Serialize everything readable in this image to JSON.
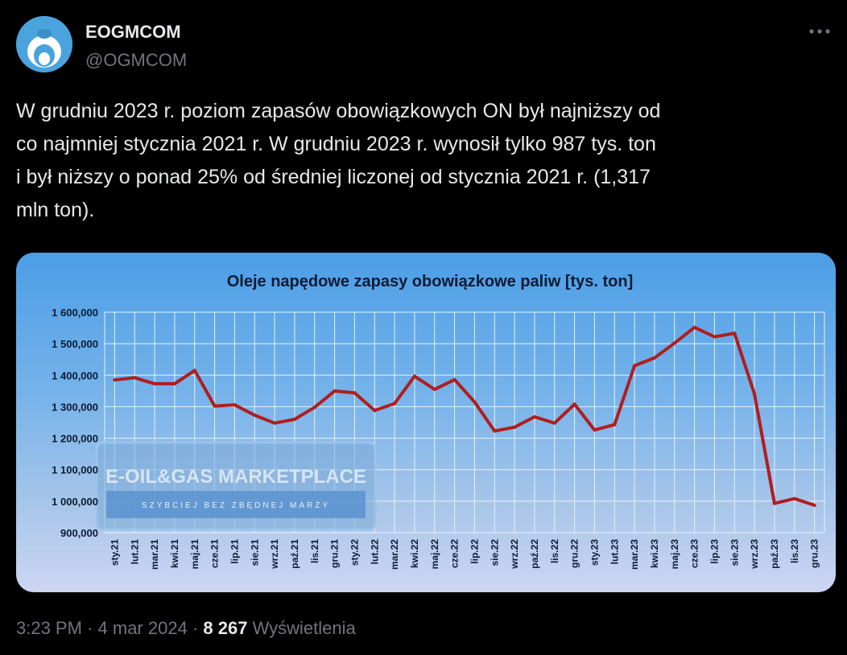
{
  "author": {
    "name": "EOGMCOM",
    "handle": "@OGMCOM"
  },
  "tweet": {
    "lines": [
      "W grudniu 2023 r. poziom zapasów obowiązkowych ON był najniższy od",
      "co najmniej stycznia 2021 r.  W grudniu 2023 r. wynosił tylko 987 tys. ton",
      "i był niższy o ponad 25% od średniej liczonej od stycznia 2021 r. (1,317",
      "mln ton)."
    ]
  },
  "watermark": {
    "name": "E-OIL&GAS MARKETPLACE",
    "tagline": "SZYBCIEJ BEZ ZBĘDNEJ MARŻY"
  },
  "footer": {
    "time": "3:23 PM",
    "date": "4 mar 2024",
    "views_count": "8 267",
    "views_label": "Wyświetlenia"
  },
  "icons": {
    "menu": "more-dots-icon",
    "avatar": "logo-icon"
  },
  "colors": {
    "line": "#b01e1e",
    "accent": "#4aa3dc",
    "secondary_text": "#71767b"
  },
  "chart_data": {
    "type": "line",
    "title": "Oleje napędowe zapasy obowiązkowe paliw [tys. ton]",
    "ylim": [
      900000,
      1600000
    ],
    "ytick_labels": [
      "1 600,000",
      "1 500,000",
      "1 400,000",
      "1 300,000",
      "1 200,000",
      "1 100,000",
      "1 000,000",
      "900,000"
    ],
    "grid": true,
    "categories": [
      "sty.21",
      "lut.21",
      "mar.21",
      "kwi.21",
      "maj.21",
      "cze.21",
      "lip.21",
      "sie.21",
      "wrz.21",
      "paź.21",
      "lis.21",
      "gru.21",
      "sty.22",
      "lut.22",
      "mar.22",
      "kwi.22",
      "maj.22",
      "cze.22",
      "lip.22",
      "sie.22",
      "wrz.22",
      "paź.22",
      "lis.22",
      "gru.22",
      "sty.23",
      "lut.23",
      "mar.23",
      "kwi.23",
      "maj.23",
      "cze.23",
      "lip.23",
      "sie.23",
      "wrz.23",
      "paź.23",
      "lis.23",
      "gru.23"
    ],
    "series": [
      {
        "values": [
          1385000,
          1392000,
          1373000,
          1373000,
          1415000,
          1302000,
          1306000,
          1273000,
          1248000,
          1260000,
          1298000,
          1350000,
          1344000,
          1288000,
          1310000,
          1397000,
          1355000,
          1386000,
          1315000,
          1223000,
          1235000,
          1268000,
          1248000,
          1308000,
          1226000,
          1243000,
          1430000,
          1455000,
          1502000,
          1552000,
          1522000,
          1533000,
          1340000,
          993000,
          1008000,
          987000
        ]
      }
    ]
  }
}
